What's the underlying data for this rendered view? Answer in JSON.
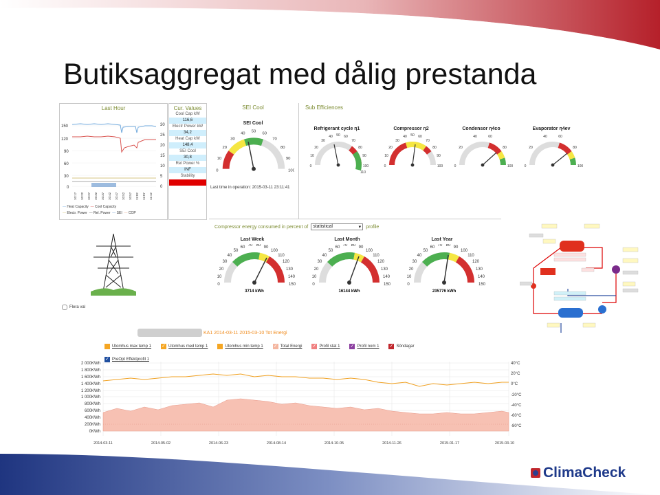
{
  "slide": {
    "title": "Butiksaggregat med dålig prestanda"
  },
  "colors": {
    "accent_red": "#c0272d",
    "swoosh_blue": "#2a3f8f",
    "panel_green": "#7b8b30",
    "cool_blue": "#cfeefc"
  },
  "last_hour": {
    "title": "Last Hour",
    "y_left_ticks": [
      "150",
      "120",
      "90",
      "60",
      "30",
      "0"
    ],
    "y_right_ticks": [
      "30",
      "25",
      "20",
      "15",
      "10",
      "5",
      "0"
    ],
    "x_ticks": [
      "10:17",
      "10:22",
      "10:27",
      "10:32",
      "10:37",
      "10:42",
      "10:47",
      "10:52",
      "10:57",
      "11:02",
      "11:07",
      "11:12"
    ],
    "legend": [
      "Heat Capacity",
      "Cool Capacity",
      "Electr. Power",
      "Rel. Power",
      "SEI",
      "COP"
    ]
  },
  "cur_values": {
    "title": "Cur. Values",
    "rows": [
      {
        "label": "Cool Cap kW",
        "value": "116,6"
      },
      {
        "label": "Electr Power kW",
        "value": "34,2"
      },
      {
        "label": "Heat Cap kW",
        "value": "148,4"
      },
      {
        "label": "SEI Cool",
        "value": "30,8"
      },
      {
        "label": "Rel Power %",
        "value": "INF"
      },
      {
        "label": "Stability",
        "value": ""
      }
    ]
  },
  "sei_cool": {
    "header": "SEI Cool",
    "gauge_title": "SEI Cool",
    "ticks": [
      "0",
      "10",
      "20",
      "30",
      "40",
      "50",
      "60",
      "70",
      "80",
      "90",
      "100"
    ],
    "value": 42,
    "last_time": "Last time in operation: 2015-03-11 23:11:41"
  },
  "sub_efficiences": {
    "header": "Sub Efficiences",
    "gauges": [
      {
        "title": "Refrigerant cycle η1",
        "ticks": [
          "0",
          "10",
          "20",
          "30",
          "40",
          "50",
          "60",
          "70",
          "80",
          "90",
          "100",
          "110"
        ],
        "value": 40
      },
      {
        "title": "Compressor η2",
        "ticks": [
          "0",
          "10",
          "20",
          "30",
          "40",
          "50",
          "60",
          "70",
          "80",
          "90",
          "100"
        ],
        "value": 55
      },
      {
        "title": "Condensor η4co",
        "ticks": [
          "0",
          "20",
          "40",
          "60",
          "80",
          "100"
        ],
        "value": 67
      },
      {
        "title": "Evaporator η4ev",
        "ticks": [
          "0",
          "20",
          "40",
          "60",
          "80",
          "100"
        ],
        "value": 68
      }
    ]
  },
  "energy_compare": {
    "label_prefix": "Compressor energy consumed in percent of",
    "dropdown": "statistical",
    "label_suffix": "profile",
    "gauges": [
      {
        "title": "Last Week",
        "value_text": "3714 kWh",
        "value": 128
      },
      {
        "title": "Last Month",
        "value_text": "16144 kWh",
        "value": 120
      },
      {
        "title": "Last Year",
        "value_text": "235776 kWh",
        "value": 106
      }
    ],
    "ticks": [
      "0",
      "10",
      "20",
      "30",
      "40",
      "50",
      "60",
      "70",
      "80",
      "90",
      "100",
      "110",
      "120",
      "130",
      "140",
      "150"
    ]
  },
  "misc": {
    "checkbox_label": "Flera val"
  },
  "energy_chart": {
    "title": "KA1 2014-03-11  2015-03-10 Tot Energi",
    "legend": [
      {
        "label": "Utomhus max temp 1",
        "color": "#f5a623",
        "checked": true
      },
      {
        "label": "Utomhus med temp 1",
        "color": "#f5a623",
        "checked": true
      },
      {
        "label": "Utomhus min temp 1",
        "color": "#f5a623",
        "checked": true
      },
      {
        "label": "Total Energi",
        "color": "#f4b6a0",
        "checked": true
      },
      {
        "label": "Profil stat 1",
        "color": "#f08080",
        "checked": true
      },
      {
        "label": "Profil nom 1",
        "color": "#8b3fa0",
        "checked": true
      },
      {
        "label": "Söndagar",
        "color": "#c0272d",
        "checked": true
      },
      {
        "label": "PreOpt Effektprofil 1",
        "color": "#1f4e9f",
        "checked": true
      }
    ],
    "y_left_ticks": [
      "2 000KWh",
      "1 800KWh",
      "1 600KWh",
      "1 400KWh",
      "1 200KWh",
      "1 000KWh",
      "800KWh",
      "600KWh",
      "400KWh",
      "200KWh",
      "0KWh"
    ],
    "y_right_ticks": [
      "40°C",
      "20°C",
      "0°C",
      "-20°C",
      "-40°C",
      "-60°C",
      "-80°C"
    ],
    "x_ticks": [
      "2014-03-11",
      "2014-05-02",
      "2014-06-23",
      "2014-08-14",
      "2014-10-05",
      "2014-11-26",
      "2015-01-17",
      "2015-03-10"
    ]
  },
  "brand": {
    "name": "ClimaCheck"
  }
}
